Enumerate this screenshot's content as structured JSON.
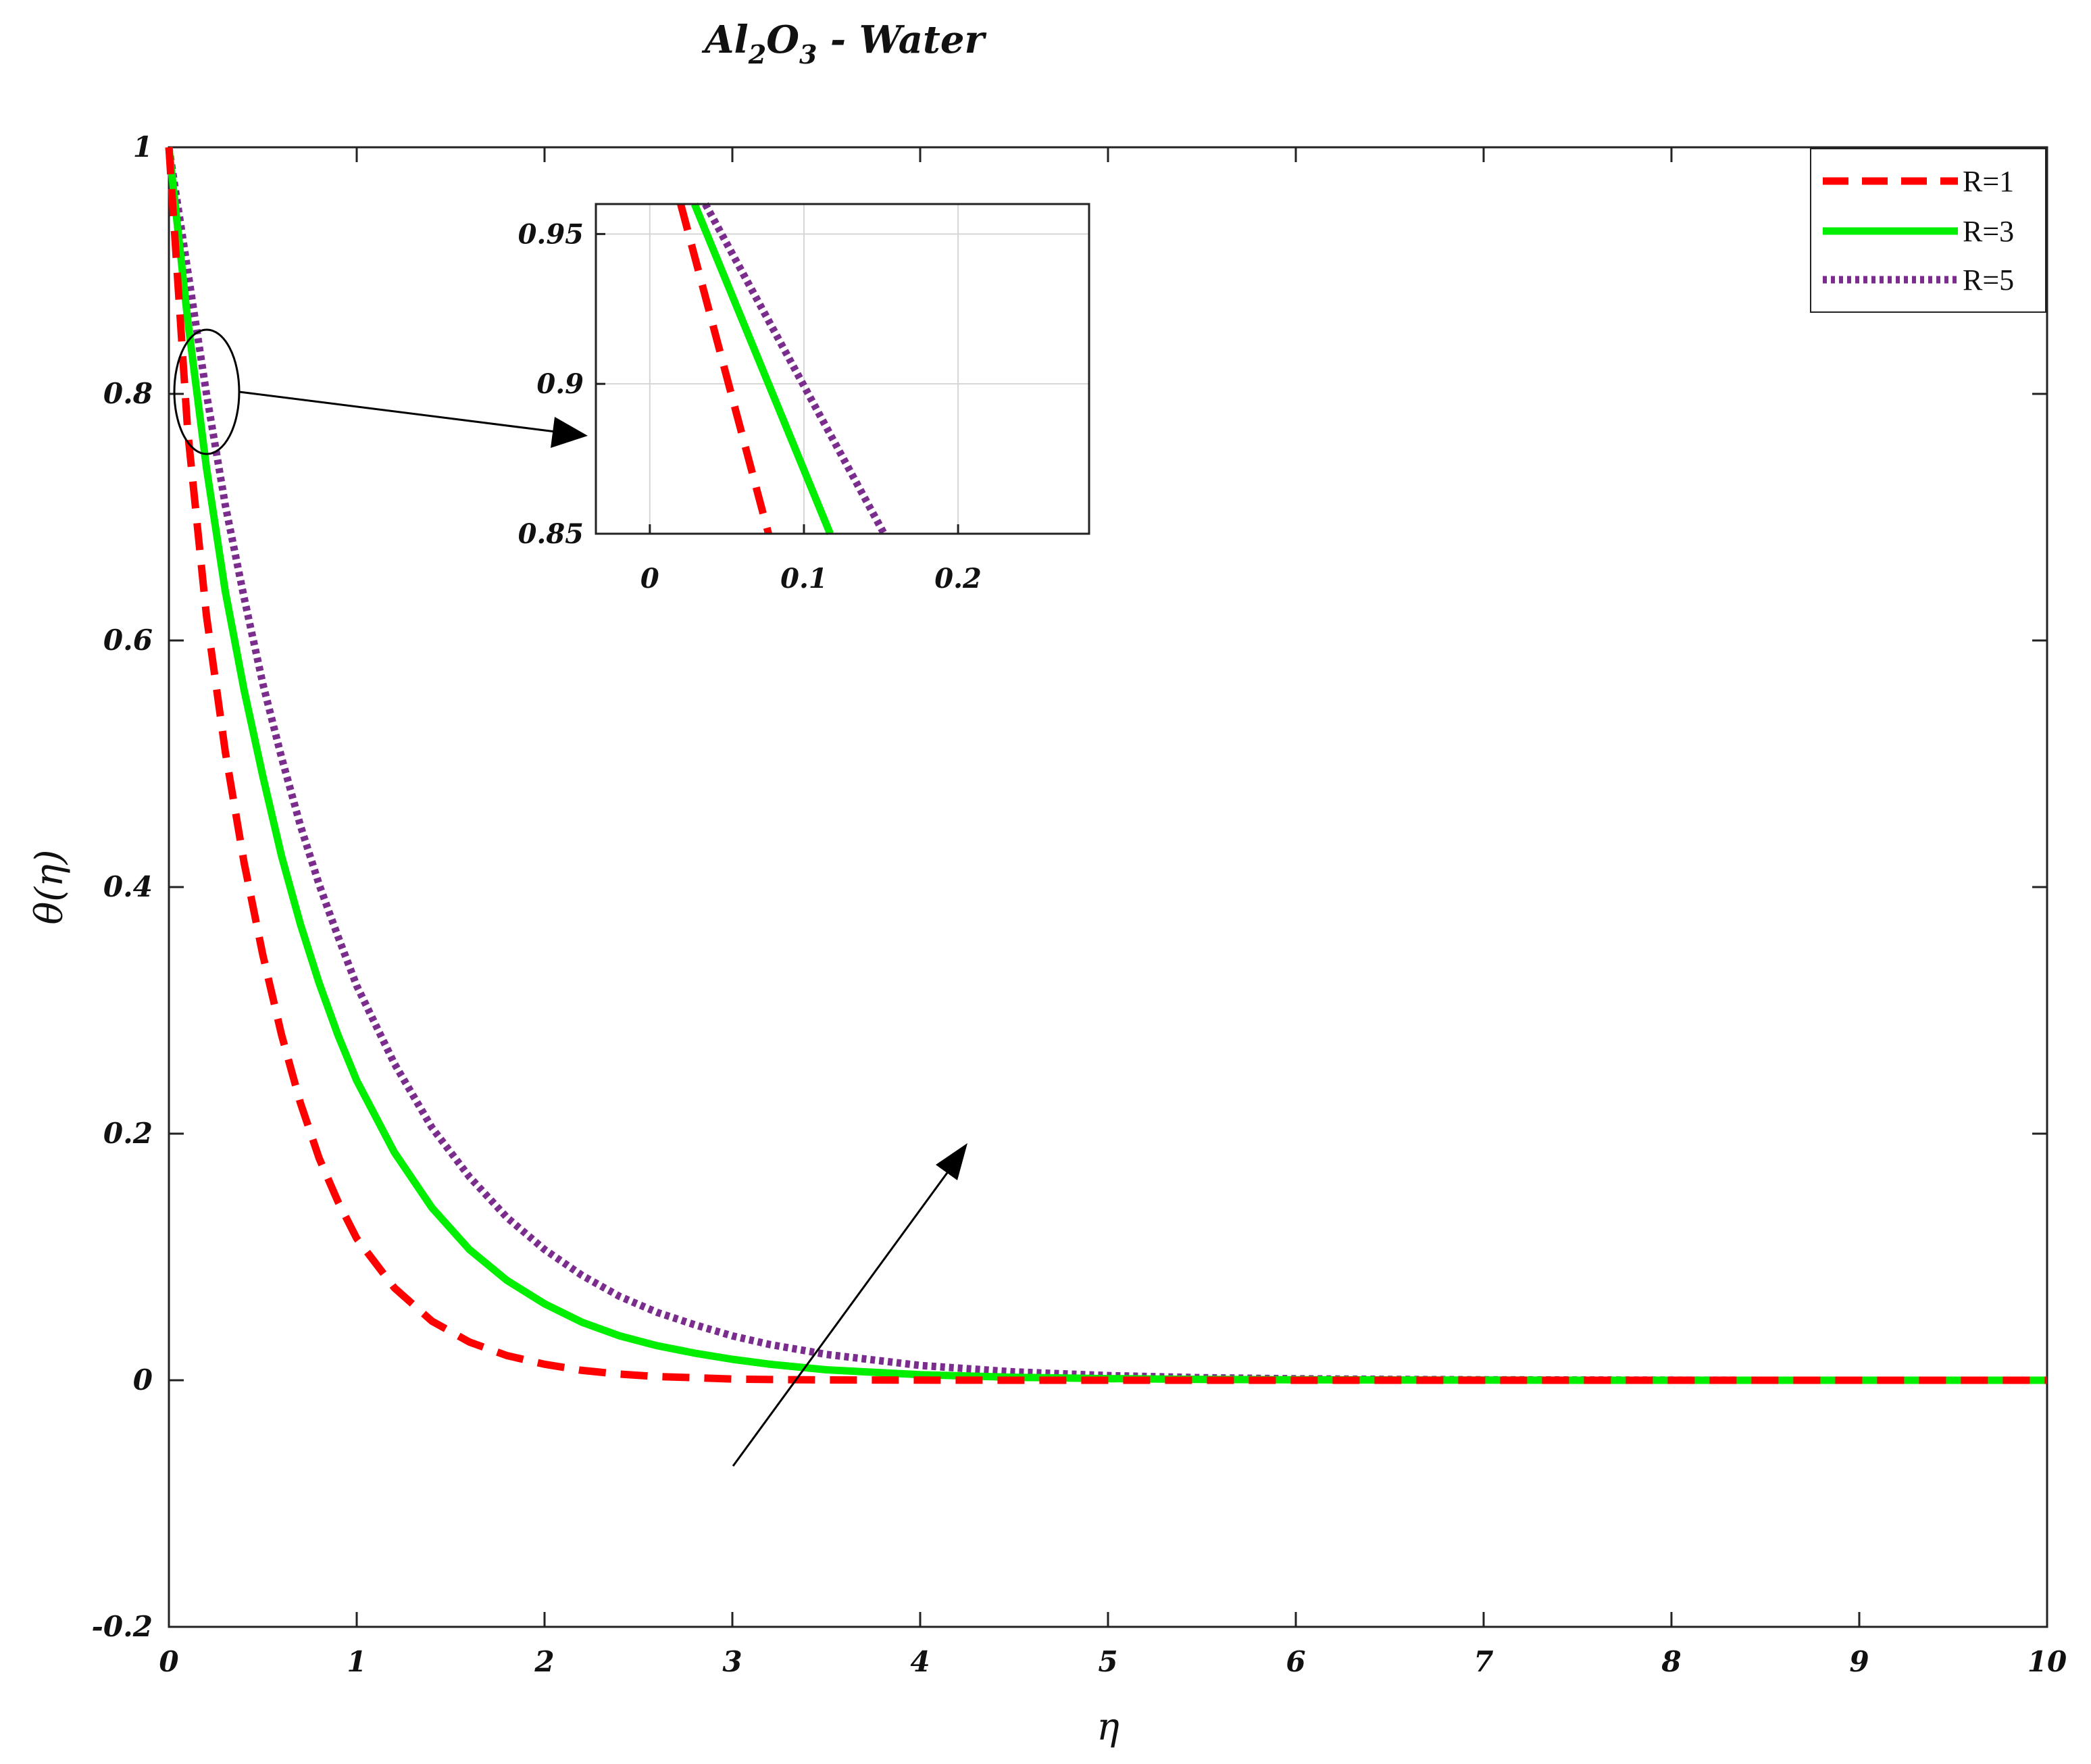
{
  "chart_data": [
    {
      "type": "line",
      "title": "Al2O3 - Water",
      "title_parts": {
        "a": "Al",
        "b": "2",
        "c": "O",
        "d": "3",
        "e": " - Water"
      },
      "xlabel": "η",
      "ylabel": "θ(η)",
      "xlim": [
        0,
        10
      ],
      "ylim": [
        -0.2,
        1
      ],
      "xticks": [
        "0",
        "1",
        "2",
        "3",
        "4",
        "5",
        "6",
        "7",
        "8",
        "9",
        "10"
      ],
      "yticks": [
        "-0.2",
        "0",
        "0.2",
        "0.4",
        "0.6",
        "0.8",
        "1"
      ],
      "grid": false,
      "legend_position": "top-right",
      "x": [
        0,
        0.1,
        0.2,
        0.3,
        0.4,
        0.5,
        0.6,
        0.7,
        0.8,
        0.9,
        1,
        1.2,
        1.4,
        1.6,
        1.8,
        2,
        2.2,
        2.4,
        2.6,
        2.8,
        3,
        3.2,
        3.5,
        4,
        4.5,
        5,
        5.5,
        6,
        6.5,
        7,
        7.5,
        8,
        8.5,
        9,
        9.5,
        10
      ],
      "series": [
        {
          "name": "R=1",
          "color": "#ff0000",
          "style": "dashed",
          "values": [
            1.0,
            0.77,
            0.62,
            0.51,
            0.42,
            0.345,
            0.28,
            0.225,
            0.18,
            0.145,
            0.115,
            0.075,
            0.048,
            0.031,
            0.02,
            0.013,
            0.008,
            0.005,
            0.003,
            0.002,
            0.001,
            0.0006,
            0.0003,
            0.0001,
            0,
            0,
            0,
            0,
            0,
            0,
            0,
            0,
            0,
            0,
            0,
            0
          ]
        },
        {
          "name": "R=3",
          "color": "#00ee00",
          "style": "solid",
          "values": [
            1.0,
            0.86,
            0.74,
            0.64,
            0.56,
            0.49,
            0.425,
            0.37,
            0.322,
            0.28,
            0.243,
            0.185,
            0.14,
            0.106,
            0.081,
            0.062,
            0.047,
            0.036,
            0.028,
            0.022,
            0.017,
            0.013,
            0.0085,
            0.0045,
            0.0024,
            0.0013,
            0.0007,
            0.0004,
            0.0002,
            0.0001,
            0,
            0,
            0,
            0,
            0,
            0
          ]
        },
        {
          "name": "R=5",
          "color": "#7b2d8e",
          "style": "dotted",
          "values": [
            1.0,
            0.9,
            0.8,
            0.71,
            0.635,
            0.565,
            0.505,
            0.45,
            0.402,
            0.36,
            0.32,
            0.257,
            0.205,
            0.165,
            0.132,
            0.106,
            0.085,
            0.068,
            0.055,
            0.045,
            0.036,
            0.029,
            0.021,
            0.012,
            0.0068,
            0.0038,
            0.0021,
            0.0012,
            0.0007,
            0.0004,
            0.0002,
            0.0001,
            0,
            0,
            0,
            0
          ]
        }
      ],
      "annotations": [
        "arrow indicating increasing R",
        "ellipse zoom marker near η≈0.1, θ≈0.8 with arrow to inset"
      ]
    },
    {
      "type": "line",
      "title": "",
      "xlim": [
        -0.035,
        0.285
      ],
      "ylim": [
        0.85,
        0.96
      ],
      "xticks": [
        "0",
        "0.1",
        "0.2"
      ],
      "yticks": [
        "0.85",
        "0.9",
        "0.95"
      ],
      "grid": true,
      "series": [
        {
          "name": "R=1",
          "color": "#ff0000",
          "style": "dashed",
          "points": [
            [
              0.02,
              0.96
            ],
            [
              0.077,
              0.85
            ]
          ]
        },
        {
          "name": "R=3",
          "color": "#00ee00",
          "style": "solid",
          "points": [
            [
              0.029,
              0.96
            ],
            [
              0.117,
              0.85
            ]
          ]
        },
        {
          "name": "R=5",
          "color": "#7b2d8e",
          "style": "dotted",
          "points": [
            [
              0.036,
              0.96
            ],
            [
              0.152,
              0.85
            ]
          ]
        }
      ]
    }
  ]
}
